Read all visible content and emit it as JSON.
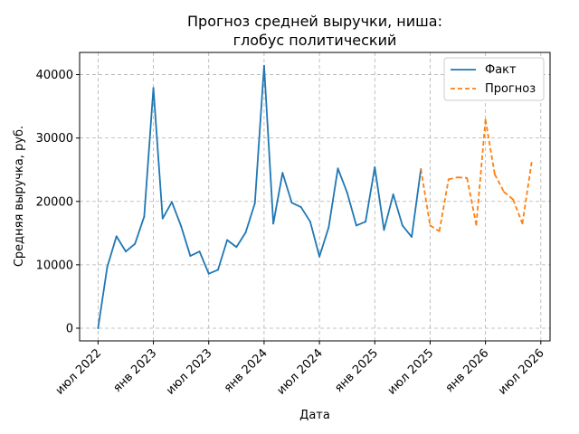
{
  "chart_data": {
    "type": "line",
    "title_lines": [
      "Прогноз средней выручки, ниша:",
      "глобус политический"
    ],
    "xlabel": "Дата",
    "ylabel": "Средняя выручка, руб.",
    "x_ticks": [
      "июл 2022",
      "янв 2023",
      "июл 2023",
      "янв 2024",
      "июл 2024",
      "янв 2025",
      "июл 2025",
      "янв 2026",
      "июл 2026"
    ],
    "x_tick_dates": [
      "2022-07",
      "2023-01",
      "2023-07",
      "2024-01",
      "2024-07",
      "2025-01",
      "2025-07",
      "2026-01",
      "2026-07"
    ],
    "y_ticks": [
      0,
      10000,
      20000,
      30000,
      40000
    ],
    "ylim": [
      -2000,
      43500
    ],
    "xlim": [
      "2022-05",
      "2026-08"
    ],
    "grid": true,
    "legend_position": "top-right",
    "series": [
      {
        "name": "Факт",
        "color": "#1f77b4",
        "style": "solid",
        "x": [
          "2022-07",
          "2022-08",
          "2022-09",
          "2022-10",
          "2022-11",
          "2022-12",
          "2023-01",
          "2023-02",
          "2023-03",
          "2023-04",
          "2023-05",
          "2023-06",
          "2023-07",
          "2023-08",
          "2023-09",
          "2023-10",
          "2023-11",
          "2023-12",
          "2024-01",
          "2024-02",
          "2024-03",
          "2024-04",
          "2024-05",
          "2024-06",
          "2024-07",
          "2024-08",
          "2024-09",
          "2024-10",
          "2024-11",
          "2024-12",
          "2025-01",
          "2025-02",
          "2025-03",
          "2025-04",
          "2025-05",
          "2025-06"
        ],
        "y": [
          0,
          9700,
          14500,
          12100,
          13300,
          17600,
          37900,
          17300,
          19900,
          16100,
          11400,
          12100,
          8600,
          9200,
          13900,
          12800,
          15100,
          19700,
          41400,
          16500,
          24500,
          19800,
          19100,
          16800,
          11300,
          15900,
          25200,
          21400,
          16200,
          16800,
          25400,
          15500,
          21100,
          16200,
          14400,
          25100
        ]
      },
      {
        "name": "Прогноз",
        "color": "#ff7f0e",
        "style": "dashed",
        "x": [
          "2025-06",
          "2025-07",
          "2025-08",
          "2025-09",
          "2025-10",
          "2025-11",
          "2025-12",
          "2026-01",
          "2026-02",
          "2026-03",
          "2026-04",
          "2026-05",
          "2026-06"
        ],
        "y": [
          25100,
          16200,
          15300,
          23500,
          23800,
          23700,
          16300,
          32900,
          24300,
          21500,
          20300,
          16500,
          26100
        ]
      }
    ]
  }
}
